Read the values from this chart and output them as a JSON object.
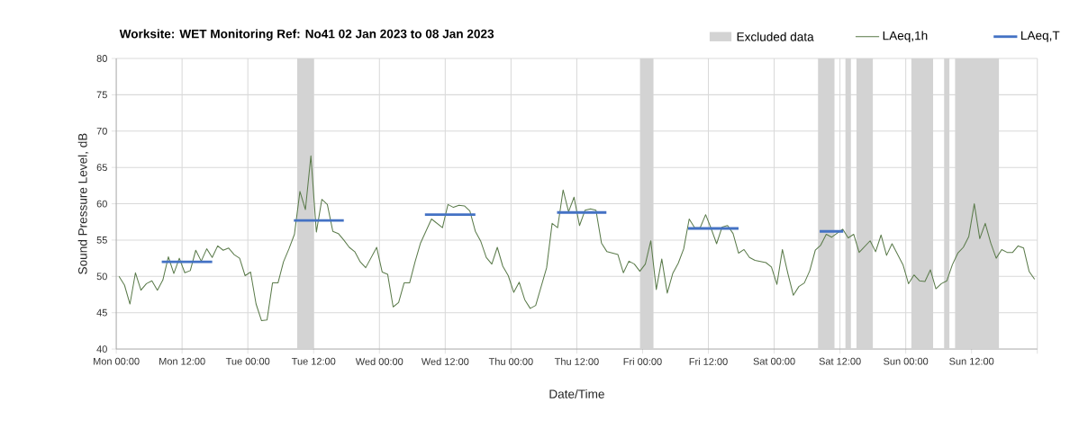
{
  "chart_data": {
    "type": "line",
    "title": "Worksite: WET    Monitoring Ref: No41     02 Jan 2023 to 08 Jan 2023",
    "xlabel": "Date/Time",
    "ylabel": "Sound Pressure Level, dB",
    "xlim": [
      "2023-01-02T00:00",
      "2023-01-09T00:00"
    ],
    "ylim": [
      40,
      80
    ],
    "xticks": [
      {
        "value": "2023-01-02T00:00",
        "label": "Mon 00:00"
      },
      {
        "value": "2023-01-02T12:00",
        "label": "Mon 12:00"
      },
      {
        "value": "2023-01-03T00:00",
        "label": "Tue 00:00"
      },
      {
        "value": "2023-01-03T12:00",
        "label": "Tue 12:00"
      },
      {
        "value": "2023-01-04T00:00",
        "label": "Wed 00:00"
      },
      {
        "value": "2023-01-04T12:00",
        "label": "Wed 12:00"
      },
      {
        "value": "2023-01-05T00:00",
        "label": "Thu 00:00"
      },
      {
        "value": "2023-01-05T12:00",
        "label": "Thu 12:00"
      },
      {
        "value": "2023-01-06T00:00",
        "label": "Fri 00:00"
      },
      {
        "value": "2023-01-06T12:00",
        "label": "Fri 12:00"
      },
      {
        "value": "2023-01-07T00:00",
        "label": "Sat 00:00"
      },
      {
        "value": "2023-01-07T12:00",
        "label": "Sat 12:00"
      },
      {
        "value": "2023-01-08T00:00",
        "label": "Sun 00:00"
      },
      {
        "value": "2023-01-08T12:00",
        "label": "Sun 12:00"
      },
      {
        "value": "2023-01-09T00:00",
        "label": null
      }
    ],
    "yticks": [
      40,
      45,
      50,
      55,
      60,
      65,
      70,
      75,
      80
    ],
    "grid": true,
    "legend": "top right",
    "marker": "none",
    "line_style": "solid",
    "bands": [
      {
        "axis": "x",
        "from": "2023-01-03T09:00",
        "to": "2023-01-03T12:00",
        "label": "Excluded data",
        "color": "#d3d3d3"
      },
      {
        "axis": "x",
        "from": "2023-01-05T23:30",
        "to": "2023-01-06T02:00",
        "color": "#d3d3d3"
      },
      {
        "axis": "x",
        "from": "2023-01-07T08:00",
        "to": "2023-01-07T11:00",
        "color": "#d3d3d3"
      },
      {
        "axis": "x",
        "from": "2023-01-07T13:00",
        "to": "2023-01-07T14:00",
        "color": "#d3d3d3"
      },
      {
        "axis": "x",
        "from": "2023-01-07T15:00",
        "to": "2023-01-07T18:00",
        "color": "#d3d3d3"
      },
      {
        "axis": "x",
        "from": "2023-01-08T01:00",
        "to": "2023-01-08T05:00",
        "color": "#d3d3d3"
      },
      {
        "axis": "x",
        "from": "2023-01-08T07:00",
        "to": "2023-01-08T08:00",
        "color": "#d3d3d3"
      },
      {
        "axis": "x",
        "from": "2023-01-08T09:00",
        "to": "2023-01-08T17:00",
        "color": "#d3d3d3"
      }
    ],
    "series": [
      {
        "name": "LAeq,1h",
        "color": "#5b7b4b",
        "x": [
          "2023-01-02T00:30",
          "2023-01-02T01:30",
          "2023-01-02T02:30",
          "2023-01-02T03:30",
          "2023-01-02T04:30",
          "2023-01-02T05:30",
          "2023-01-02T06:30",
          "2023-01-02T07:30",
          "2023-01-02T08:30",
          "2023-01-02T09:30",
          "2023-01-02T10:30",
          "2023-01-02T11:30",
          "2023-01-02T12:30",
          "2023-01-02T13:30",
          "2023-01-02T14:30",
          "2023-01-02T15:30",
          "2023-01-02T16:30",
          "2023-01-02T17:30",
          "2023-01-02T18:30",
          "2023-01-02T19:30",
          "2023-01-02T20:30",
          "2023-01-02T21:30",
          "2023-01-02T22:30",
          "2023-01-02T23:30",
          "2023-01-03T00:30",
          "2023-01-03T01:30",
          "2023-01-03T02:30",
          "2023-01-03T03:30",
          "2023-01-03T04:30",
          "2023-01-03T05:30",
          "2023-01-03T06:30",
          "2023-01-03T07:30",
          "2023-01-03T08:30",
          "2023-01-03T09:30",
          "2023-01-03T10:30",
          "2023-01-03T11:30",
          "2023-01-03T12:30",
          "2023-01-03T13:30",
          "2023-01-03T14:30",
          "2023-01-03T15:30",
          "2023-01-03T16:30",
          "2023-01-03T17:30",
          "2023-01-03T18:30",
          "2023-01-03T19:30",
          "2023-01-03T20:30",
          "2023-01-03T21:30",
          "2023-01-03T22:30",
          "2023-01-03T23:30",
          "2023-01-04T00:30",
          "2023-01-04T01:30",
          "2023-01-04T02:30",
          "2023-01-04T03:30",
          "2023-01-04T04:30",
          "2023-01-04T05:30",
          "2023-01-04T06:30",
          "2023-01-04T07:30",
          "2023-01-04T09:30",
          "2023-01-04T11:30",
          "2023-01-04T12:30",
          "2023-01-04T13:30",
          "2023-01-04T14:30",
          "2023-01-04T15:30",
          "2023-01-04T16:30",
          "2023-01-04T17:30",
          "2023-01-04T18:30",
          "2023-01-04T19:30",
          "2023-01-04T20:30",
          "2023-01-04T21:30",
          "2023-01-04T22:30",
          "2023-01-04T23:30",
          "2023-01-05T00:30",
          "2023-01-05T01:30",
          "2023-01-05T02:30",
          "2023-01-05T03:30",
          "2023-01-05T04:30",
          "2023-01-05T06:30",
          "2023-01-05T07:30",
          "2023-01-05T08:30",
          "2023-01-05T09:30",
          "2023-01-05T10:30",
          "2023-01-05T11:30",
          "2023-01-05T12:30",
          "2023-01-05T13:30",
          "2023-01-05T14:30",
          "2023-01-05T15:30",
          "2023-01-05T16:30",
          "2023-01-05T17:30",
          "2023-01-05T19:30",
          "2023-01-05T20:30",
          "2023-01-05T21:30",
          "2023-01-05T22:30",
          "2023-01-05T23:30",
          "2023-01-06T00:30",
          "2023-01-06T01:30",
          "2023-01-06T02:30",
          "2023-01-06T03:30",
          "2023-01-06T04:30",
          "2023-01-06T05:30",
          "2023-01-06T06:30",
          "2023-01-06T07:30",
          "2023-01-06T08:30",
          "2023-01-06T09:30",
          "2023-01-06T10:30",
          "2023-01-06T11:30",
          "2023-01-06T12:30",
          "2023-01-06T13:30",
          "2023-01-06T14:30",
          "2023-01-06T15:30",
          "2023-01-06T16:30",
          "2023-01-06T17:30",
          "2023-01-06T18:30",
          "2023-01-06T19:30",
          "2023-01-06T20:30",
          "2023-01-06T22:30",
          "2023-01-06T23:30",
          "2023-01-07T00:30",
          "2023-01-07T01:30",
          "2023-01-07T02:30",
          "2023-01-07T03:30",
          "2023-01-07T04:30",
          "2023-01-07T05:30",
          "2023-01-07T06:30",
          "2023-01-07T07:30",
          "2023-01-07T08:30",
          "2023-01-07T09:30",
          "2023-01-07T10:30",
          "2023-01-07T12:30",
          "2023-01-07T13:30",
          "2023-01-07T14:30",
          "2023-01-07T15:30",
          "2023-01-07T16:30",
          "2023-01-07T17:30",
          "2023-01-07T18:30",
          "2023-01-07T19:30",
          "2023-01-07T20:30",
          "2023-01-07T21:30",
          "2023-01-07T23:30",
          "2023-01-08T00:30",
          "2023-01-08T01:30",
          "2023-01-08T02:30",
          "2023-01-08T03:30",
          "2023-01-08T04:30",
          "2023-01-08T05:30",
          "2023-01-08T06:30",
          "2023-01-08T07:30",
          "2023-01-08T08:30",
          "2023-01-08T09:30",
          "2023-01-08T10:30",
          "2023-01-08T11:30",
          "2023-01-08T12:30",
          "2023-01-08T13:30",
          "2023-01-08T14:30",
          "2023-01-08T15:30",
          "2023-01-08T16:30",
          "2023-01-08T17:30",
          "2023-01-08T18:30",
          "2023-01-08T19:30",
          "2023-01-08T20:30",
          "2023-01-08T21:30",
          "2023-01-08T22:30",
          "2023-01-08T23:30"
        ],
        "values": [
          50.0,
          48.8,
          46.2,
          50.5,
          48.1,
          49.0,
          49.4,
          48.1,
          49.5,
          52.7,
          50.4,
          52.5,
          50.5,
          50.8,
          53.6,
          52.1,
          53.8,
          52.6,
          54.2,
          53.6,
          53.9,
          53.0,
          52.5,
          50.1,
          50.6,
          46.2,
          43.9,
          44.0,
          49.1,
          49.1,
          52.0,
          53.8,
          55.8,
          61.7,
          59.2,
          66.6,
          56.1,
          60.6,
          59.9,
          56.2,
          55.9,
          55.0,
          54.0,
          53.4,
          52.0,
          51.2,
          52.6,
          54.0,
          50.6,
          50.3,
          45.8,
          46.4,
          49.1,
          49.1,
          52.0,
          54.6,
          57.9,
          56.7,
          59.9,
          59.5,
          59.8,
          59.7,
          59.0,
          56.2,
          54.8,
          52.6,
          51.7,
          54.0,
          51.4,
          50.1,
          47.8,
          49.2,
          46.8,
          45.6,
          46.0,
          51.2,
          57.3,
          56.7,
          61.9,
          58.9,
          60.9,
          57.0,
          59.1,
          59.3,
          59.1,
          54.6,
          53.4,
          53.0,
          50.5,
          52.1,
          51.7,
          50.7,
          51.7,
          54.9,
          48.2,
          52.4,
          47.7,
          50.4,
          51.8,
          53.8,
          57.9,
          56.7,
          56.7,
          58.5,
          56.6,
          54.5,
          56.8,
          57.0,
          55.9,
          53.2,
          53.7,
          52.6,
          52.2,
          51.9,
          51.3,
          48.9,
          53.7,
          50.4,
          47.4,
          48.6,
          49.1,
          50.8,
          53.6,
          54.3,
          55.8,
          55.4,
          56.5,
          55.3,
          55.8,
          53.3,
          54.1,
          54.9,
          53.4,
          55.7,
          52.9,
          54.5,
          51.6,
          49.0,
          50.2,
          49.4,
          49.3,
          50.9,
          48.3,
          49.0,
          49.4,
          51.6,
          53.2,
          54.0,
          55.5,
          60.0,
          55.2,
          57.3,
          54.6,
          52.5,
          53.7,
          53.3,
          53.3,
          54.2,
          53.9,
          50.7,
          49.6
        ]
      },
      {
        "name": "LAeq,T",
        "color": "#4472c4",
        "x": [
          "2023-01-02T08:18",
          "2023-01-02T17:30",
          "2023-01-03T01:00",
          "2023-01-03T08:24",
          "2023-01-03T17:30",
          "2023-01-04T02:00",
          "2023-01-04T08:18",
          "2023-01-04T17:30",
          "2023-01-05T00:00",
          "2023-01-05T08:24",
          "2023-01-05T17:24",
          "2023-01-06T00:00",
          "2023-01-06T08:18",
          "2023-01-06T17:30",
          "2023-01-07T00:00",
          "2023-01-07T08:18",
          "2023-01-07T12:36"
        ],
        "values": [
          52.0,
          52.0,
          null,
          57.7,
          57.7,
          null,
          58.5,
          58.5,
          null,
          58.8,
          58.8,
          null,
          56.6,
          56.6,
          null,
          56.2,
          56.2
        ]
      }
    ]
  }
}
